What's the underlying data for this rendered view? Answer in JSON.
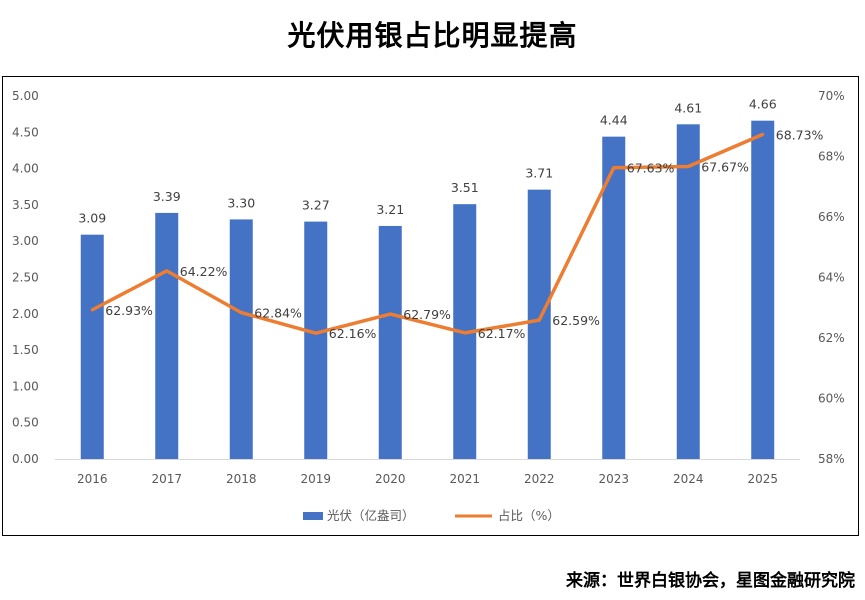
{
  "title": "光伏用银占比明显提高",
  "source": "来源：世界白银协会，星图金融研究院",
  "chart_data": {
    "type": "bar",
    "title": "光伏用银占比明显提高",
    "categories": [
      "2016",
      "2017",
      "2018",
      "2019",
      "2020",
      "2021",
      "2022",
      "2023",
      "2024",
      "2025"
    ],
    "series": [
      {
        "name": "光伏（亿盎司）",
        "kind": "bar",
        "axis": "left",
        "color": "#4472C4",
        "values": [
          3.09,
          3.39,
          3.3,
          3.27,
          3.21,
          3.51,
          3.71,
          4.44,
          4.61,
          4.66
        ],
        "labels": [
          "3.09",
          "3.39",
          "3.30",
          "3.27",
          "3.21",
          "3.51",
          "3.71",
          "4.44",
          "4.61",
          "4.66"
        ]
      },
      {
        "name": "占比（%）",
        "kind": "line",
        "axis": "right",
        "color": "#ED7D31",
        "values": [
          62.93,
          64.22,
          62.84,
          62.16,
          62.79,
          62.17,
          62.59,
          67.63,
          67.67,
          68.73
        ],
        "labels": [
          "62.93%",
          "64.22%",
          "62.84%",
          "62.16%",
          "62.79%",
          "62.17%",
          "62.59%",
          "67.63%",
          "67.67%",
          "68.73%"
        ]
      }
    ],
    "y_left": {
      "min": 0,
      "max": 5,
      "ticks": [
        "0.00",
        "0.50",
        "1.00",
        "1.50",
        "2.00",
        "2.50",
        "3.00",
        "3.50",
        "4.00",
        "4.50",
        "5.00"
      ]
    },
    "y_right": {
      "min": 58,
      "max": 70,
      "ticks": [
        "58%",
        "60%",
        "62%",
        "64%",
        "66%",
        "68%",
        "70%"
      ]
    },
    "legend_position": "bottom"
  }
}
